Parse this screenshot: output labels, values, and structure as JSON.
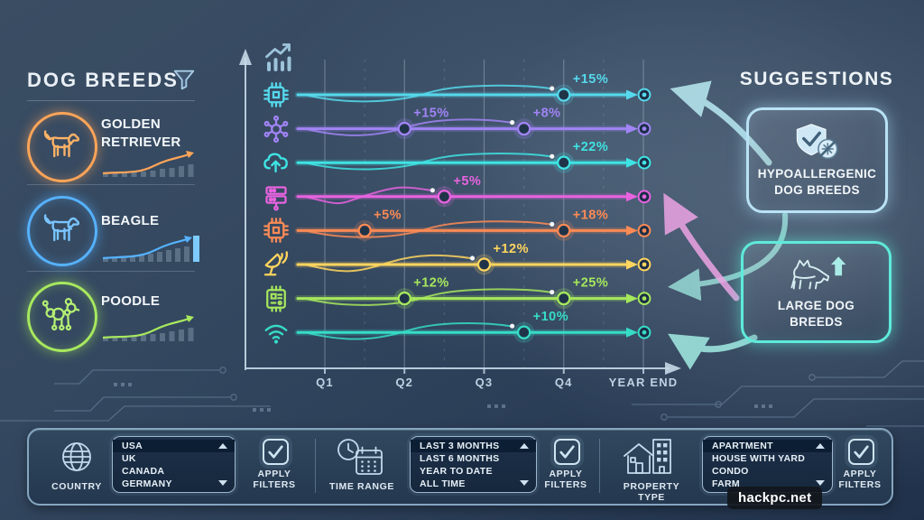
{
  "watermark": "hackpc.net",
  "left_panel": {
    "title": "DOG BREEDS",
    "filter_icon": "funnel-icon",
    "breeds": [
      {
        "name": "GOLDEN RETRIEVER",
        "icon": "golden-retriever-icon",
        "color": "#ffa558",
        "trend": "rising"
      },
      {
        "name": "BEAGLE",
        "icon": "beagle-icon",
        "color": "#56b2ff",
        "trend": "rising"
      },
      {
        "name": "POODLE",
        "icon": "poodle-icon",
        "color": "#a7e95e",
        "trend": "rising"
      }
    ]
  },
  "chart_data": {
    "type": "line",
    "title": "",
    "x_axis": {
      "labels": [
        "Q1",
        "Q2",
        "Q3",
        "Q4",
        "YEAR END"
      ]
    },
    "grid": "vertical",
    "corner_icon": "analytics-growth-icon",
    "series": [
      {
        "icon": "cpu-chip-icon",
        "color": "#56d9ec",
        "markers": [
          {
            "x": "Q4",
            "q": 4,
            "label": "+15%"
          }
        ]
      },
      {
        "icon": "network-nodes-icon",
        "color": "#a184f5",
        "markers": [
          {
            "x": "Q2",
            "q": 2,
            "label": "+15%"
          },
          {
            "x": "Q3.5",
            "q": 3.5,
            "label": "+8%"
          }
        ]
      },
      {
        "icon": "cloud-upload-icon",
        "color": "#3fe3e3",
        "markers": [
          {
            "x": "Q4",
            "q": 4,
            "label": "+22%"
          }
        ]
      },
      {
        "icon": "server-stack-icon",
        "color": "#e863e0",
        "markers": [
          {
            "x": "Q2.5",
            "q": 2.5,
            "label": "+5%"
          }
        ]
      },
      {
        "icon": "microchip-icon",
        "color": "#fb8a55",
        "markers": [
          {
            "x": "Q1.5",
            "q": 1.5,
            "label": "+5%"
          },
          {
            "x": "Q4",
            "q": 4,
            "label": "+18%"
          }
        ]
      },
      {
        "icon": "satellite-dish-icon",
        "color": "#ffd55e",
        "markers": [
          {
            "x": "Q3",
            "q": 3,
            "label": "+12%"
          }
        ]
      },
      {
        "icon": "circuit-board-icon",
        "color": "#a6e85c",
        "markers": [
          {
            "x": "Q2",
            "q": 2,
            "label": "+12%"
          },
          {
            "x": "Q4",
            "q": 4,
            "label": "+25%"
          }
        ]
      },
      {
        "icon": "wifi-icon",
        "color": "#36dcc6",
        "markers": [
          {
            "x": "Q3.5",
            "q": 3.5,
            "label": "+10%"
          }
        ]
      }
    ]
  },
  "suggestions": {
    "title": "SUGGESTIONS",
    "cards": [
      {
        "label": "HYPOALLERGENIC DOG BREEDS",
        "icon": "shield-hypoallergenic-icon",
        "accent": "#b9e2f5"
      },
      {
        "label": "LARGE DOG BREEDS",
        "icon": "large-dog-up-icon",
        "accent": "#5feadb"
      }
    ]
  },
  "filter_bar": {
    "groups": [
      {
        "icon": "globe-icon",
        "label": "COUNTRY",
        "options": [
          "USA",
          "UK",
          "CANADA",
          "GERMANY"
        ],
        "selected": "USA",
        "apply_label": "APPLY FILTERS"
      },
      {
        "icon": "time-range-icon",
        "label": "TIME RANGE",
        "options": [
          "LAST 3 MONTHS",
          "LAST 6 MONTHS",
          "YEAR TO DATE",
          "ALL TIME"
        ],
        "selected": "LAST 3 MONTHS",
        "apply_label": "APPLY FILTERS"
      },
      {
        "icon": "property-type-icon",
        "label": "PROPERTY TYPE",
        "options": [
          "APARTMENT",
          "HOUSE WITH YARD",
          "CONDO",
          "FARM"
        ],
        "selected": "APARTMENT",
        "apply_label": "APPLY FILTERS"
      }
    ]
  }
}
